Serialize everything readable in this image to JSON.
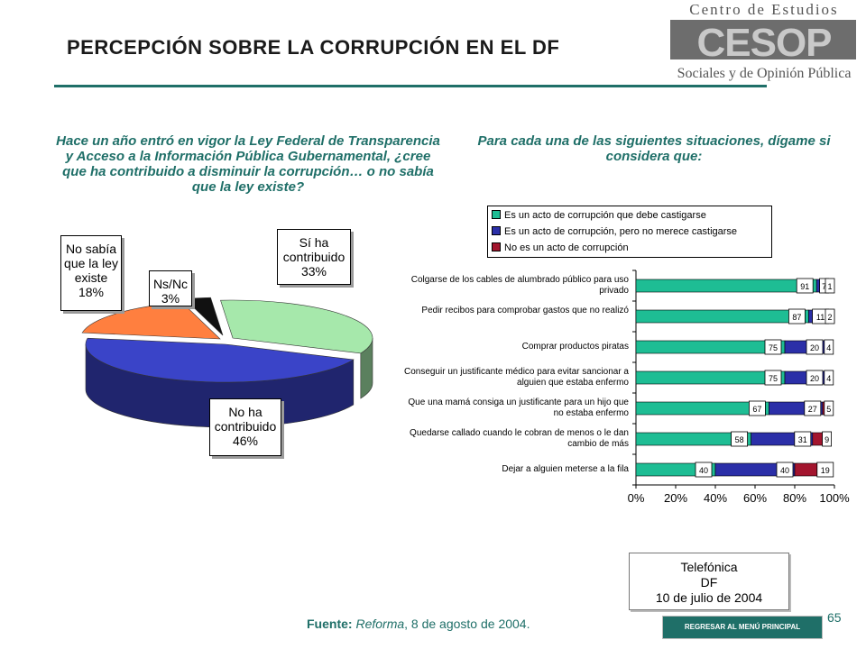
{
  "header": {
    "title": "PERCEPCIÓN SOBRE LA CORRUPCIÓN EN EL DF",
    "logo": {
      "line1": "Centro de Estudios",
      "acronym": "CESOP",
      "line2": "Sociales y de Opinión Pública"
    }
  },
  "pie_question": "Hace un año entró en vigor la Ley Federal de Transparencia y Acceso a la Información Pública Gubernamental, ¿cree que ha contribuido a disminuir la corrupción… o no sabía que la ley existe?",
  "bar_question": "Para cada una de las siguientes situaciones, dígame si considera que:",
  "chart_data": [
    {
      "type": "pie",
      "slices": [
        {
          "label": [
            "Sí ha",
            "contribuido",
            "33%"
          ],
          "value": 33,
          "color": "#a6e8ab"
        },
        {
          "label": [
            "No ha",
            "contribuido",
            "46%"
          ],
          "value": 46,
          "color": "#3a44c8"
        },
        {
          "label": [
            "No sabía",
            "que la ley",
            "existe",
            "18%"
          ],
          "value": 18,
          "color": "#ff7f3f"
        },
        {
          "label": [
            "Ns/Nc",
            "3%"
          ],
          "value": 3,
          "color": "#111111"
        }
      ]
    },
    {
      "type": "bar",
      "orientation": "horizontal",
      "stacked": true,
      "categories": [
        "Colgarse de los cables de alumbrado público para uso privado",
        "Pedir recibos para comprobar gastos que no realizó",
        "Comprar productos piratas",
        "Conseguir un justificante médico para evitar sancionar a alguien que estaba enfermo",
        "Que una mamá consiga un justificante para un hijo que no estaba enfermo",
        "Quedarse callado cuando le cobran de menos o le dan cambio de más",
        "Dejar a alguien meterse a la fila"
      ],
      "series": [
        {
          "name": "Es un acto de corrupción que debe castigarse",
          "color": "#1ebd94",
          "values": [
            91,
            87,
            75,
            75,
            67,
            58,
            40
          ]
        },
        {
          "name": "Es un acto de corrupción, pero no merece castigarse",
          "color": "#2b2fa8",
          "values": [
            7,
            11,
            20,
            20,
            27,
            31,
            40
          ]
        },
        {
          "name": "No es un acto de corrupción",
          "color": "#a3152e",
          "values": [
            1,
            2,
            4,
            4,
            5,
            9,
            19
          ]
        }
      ],
      "xlim": [
        0,
        100
      ],
      "xticks": [
        "0%",
        "20%",
        "40%",
        "60%",
        "80%",
        "100%"
      ],
      "legend": "top",
      "grid": false
    }
  ],
  "source_card": {
    "lines": [
      "Telefónica",
      "DF",
      "10 de julio de 2004"
    ]
  },
  "footer": {
    "source_label": "Fuente:",
    "source_italic": "Reforma",
    "source_rest": ", 8 de agosto de 2004.",
    "return_button": "REGRESAR AL MENÚ PRINCIPAL",
    "page_number": "65"
  }
}
